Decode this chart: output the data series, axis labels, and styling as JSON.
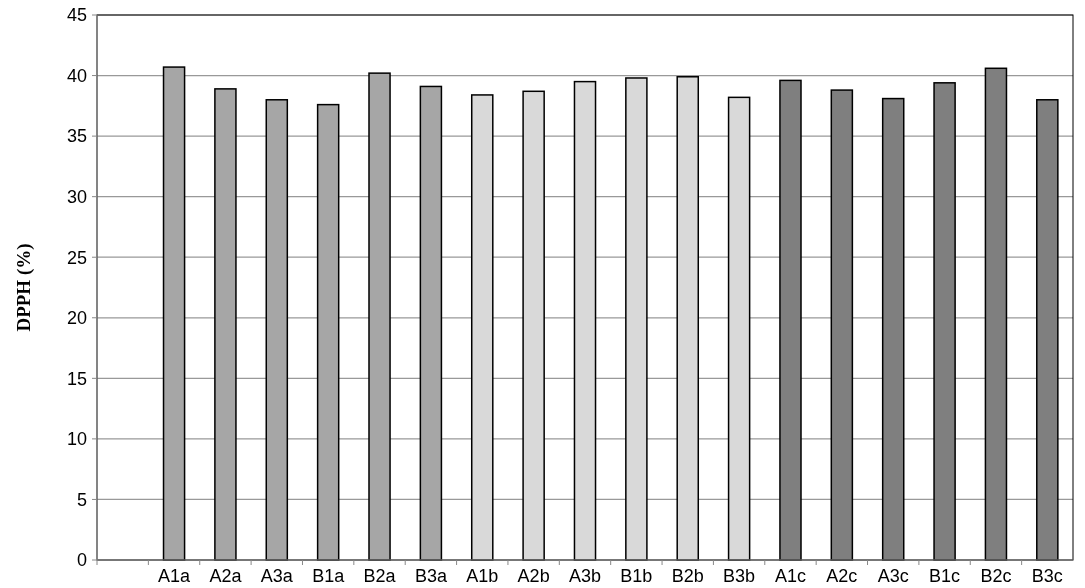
{
  "chart_data": {
    "type": "bar",
    "ylabel": "DPPH (%)",
    "categories": [
      null,
      "A1a",
      "A2a",
      "A3a",
      "B1a",
      "B2a",
      "B3a",
      "A1b",
      "A2b",
      "A3b",
      "B1b",
      "B2b",
      "B3b",
      "A1c",
      "A2c",
      "A3c",
      "B1c",
      "B2c",
      "B3c"
    ],
    "values": [
      null,
      40.7,
      38.9,
      38.0,
      37.6,
      40.2,
      39.1,
      38.4,
      38.7,
      39.5,
      39.8,
      39.9,
      38.2,
      39.6,
      38.8,
      38.1,
      39.4,
      40.6,
      38.0
    ],
    "colors": [
      null,
      "#a6a6a6",
      "#a6a6a6",
      "#a6a6a6",
      "#a6a6a6",
      "#a6a6a6",
      "#a6a6a6",
      "#d9d9d9",
      "#d9d9d9",
      "#d9d9d9",
      "#d9d9d9",
      "#d9d9d9",
      "#d9d9d9",
      "#7f7f7f",
      "#7f7f7f",
      "#7f7f7f",
      "#7f7f7f",
      "#7f7f7f",
      "#7f7f7f"
    ],
    "ylim": [
      0,
      45
    ],
    "yticks": [
      0,
      5,
      10,
      15,
      20,
      25,
      30,
      35,
      40,
      45
    ],
    "grid": "y"
  }
}
